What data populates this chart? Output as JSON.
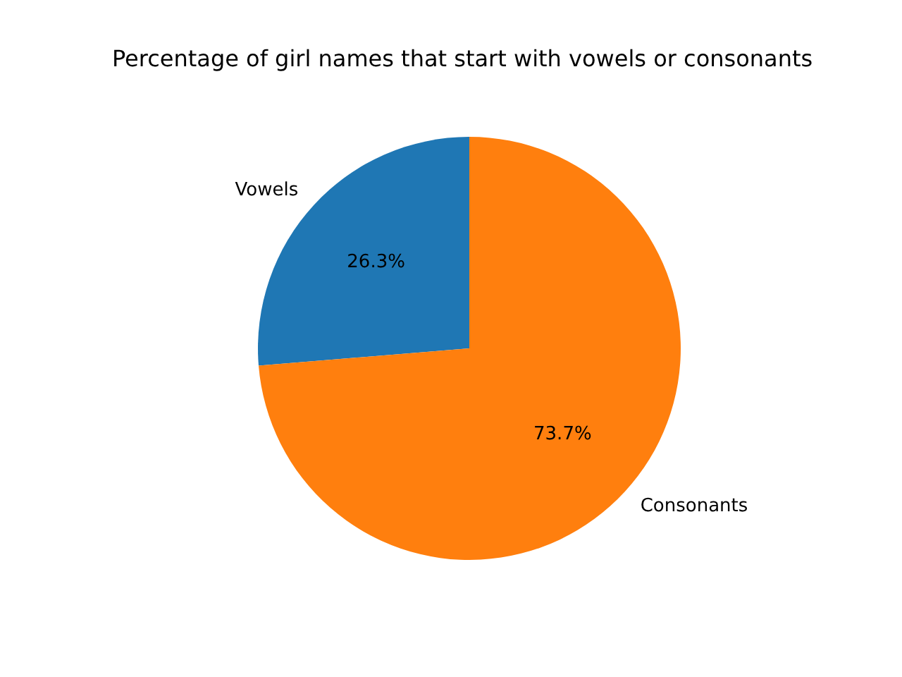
{
  "chart_data": {
    "type": "pie",
    "title": "Percentage of girl names that start with vowels or consonants",
    "categories": [
      "Vowels",
      "Consonants"
    ],
    "values": [
      26.3,
      73.7
    ],
    "value_labels": [
      "26.3%",
      "73.7%"
    ],
    "colors": [
      "#1f77b4",
      "#ff7f0e"
    ]
  }
}
